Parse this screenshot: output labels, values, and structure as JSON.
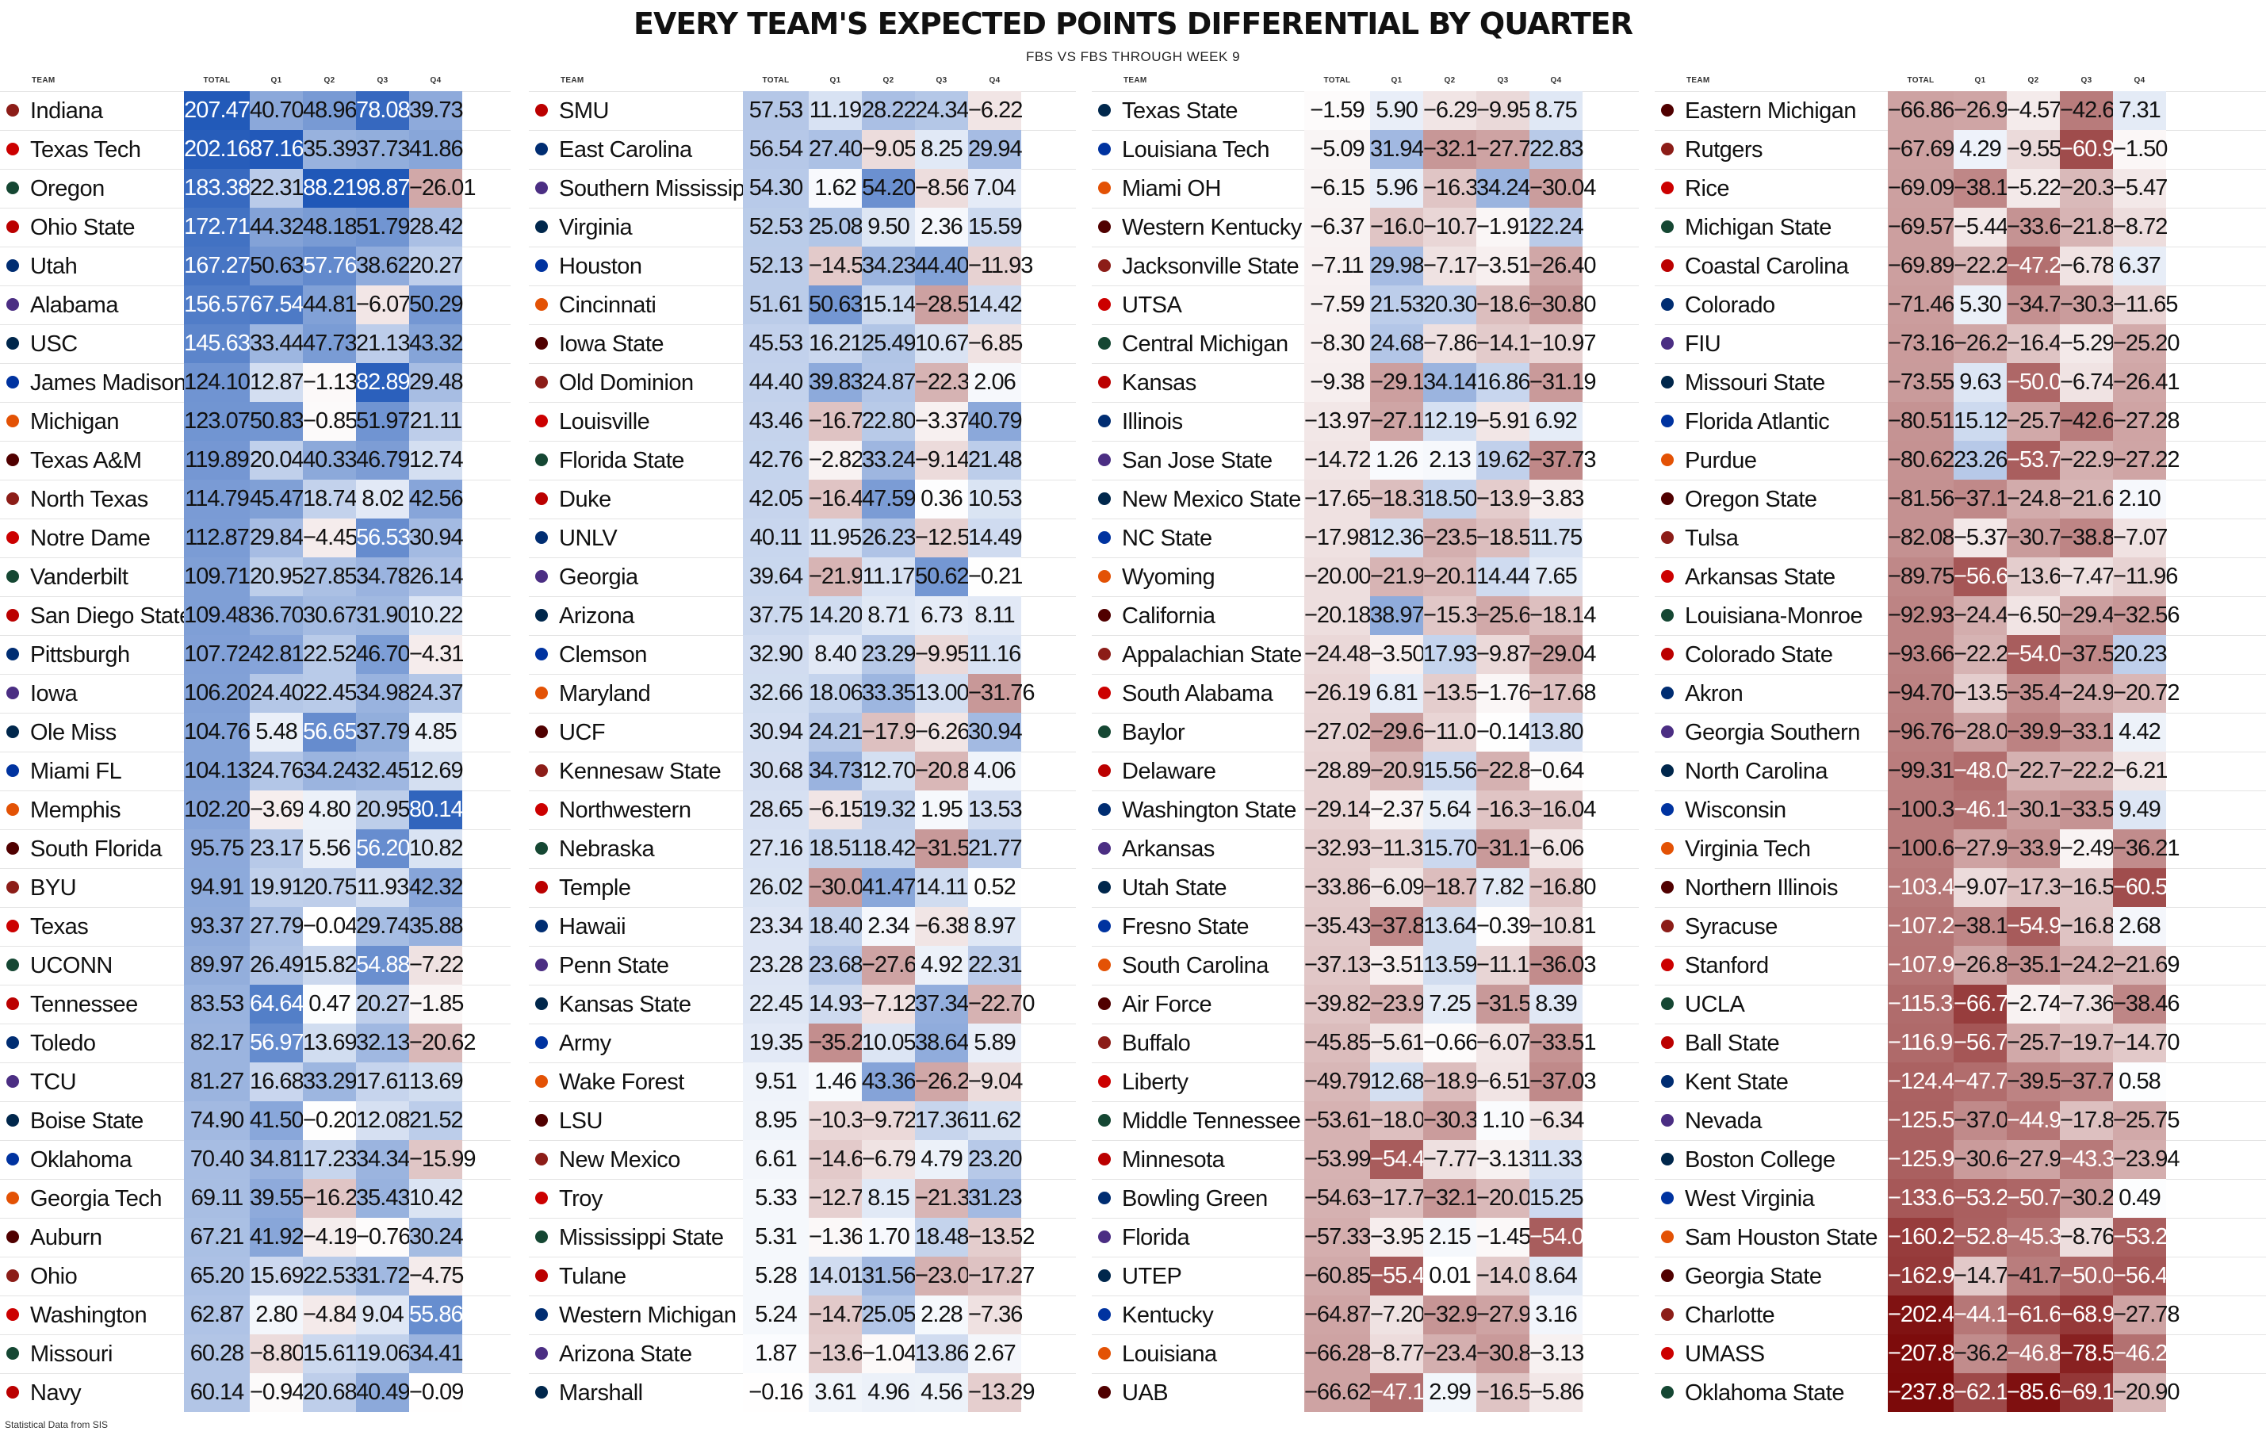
{
  "title": "EVERY TEAM'S EXPECTED POINTS DIFFERENTIAL BY QUARTER",
  "subtitle": "FBS VS FBS THROUGH WEEK 9",
  "footer": "Statistical Data from SIS",
  "column_headers": {
    "team": "TEAM",
    "total": "TOTAL",
    "q1": "Q1",
    "q2": "Q2",
    "q3": "Q3",
    "q4": "Q4"
  },
  "colors": {
    "positive": "#2058b8",
    "negative": "#7c0a0a",
    "neutral": "#ffffff"
  },
  "chart_data": {
    "type": "table",
    "title": "EVERY TEAM'S EXPECTED POINTS DIFFERENTIAL BY QUARTER",
    "subtitle": "FBS VS FBS THROUGH WEEK 9",
    "columns": [
      "TEAM",
      "TOTAL",
      "Q1",
      "Q2",
      "Q3",
      "Q4"
    ],
    "panels": [
      [
        [
          "Indiana",
          207.47,
          40.7,
          48.96,
          78.08,
          39.73
        ],
        [
          "Texas Tech",
          202.16,
          87.16,
          35.39,
          37.73,
          41.86
        ],
        [
          "Oregon",
          183.38,
          22.31,
          88.21,
          98.87,
          -26.01
        ],
        [
          "Ohio State",
          172.71,
          44.32,
          48.18,
          51.79,
          28.42
        ],
        [
          "Utah",
          167.27,
          50.63,
          57.76,
          38.62,
          20.27
        ],
        [
          "Alabama",
          156.57,
          67.54,
          44.81,
          -6.07,
          50.29
        ],
        [
          "USC",
          145.63,
          33.44,
          47.73,
          21.13,
          43.32
        ],
        [
          "James Madison",
          124.1,
          12.87,
          -1.13,
          82.89,
          29.48
        ],
        [
          "Michigan",
          123.07,
          50.83,
          -0.85,
          51.97,
          21.11
        ],
        [
          "Texas A&M",
          119.89,
          20.04,
          40.33,
          46.79,
          12.74
        ],
        [
          "North Texas",
          114.79,
          45.47,
          18.74,
          8.02,
          42.56
        ],
        [
          "Notre Dame",
          112.87,
          29.84,
          -4.45,
          56.53,
          30.94
        ],
        [
          "Vanderbilt",
          109.71,
          20.95,
          27.85,
          34.78,
          26.14
        ],
        [
          "San Diego State",
          109.48,
          36.7,
          30.67,
          31.9,
          10.22
        ],
        [
          "Pittsburgh",
          107.72,
          42.81,
          22.52,
          46.7,
          -4.31
        ],
        [
          "Iowa",
          106.2,
          24.4,
          22.45,
          34.98,
          24.37
        ],
        [
          "Ole Miss",
          104.76,
          5.48,
          56.65,
          37.79,
          4.85
        ],
        [
          "Miami FL",
          104.13,
          24.76,
          34.24,
          32.45,
          12.69
        ],
        [
          "Memphis",
          102.2,
          -3.69,
          4.8,
          20.95,
          80.14
        ],
        [
          "South Florida",
          95.75,
          23.17,
          5.56,
          56.2,
          10.82
        ],
        [
          "BYU",
          94.91,
          19.91,
          20.75,
          11.93,
          42.32
        ],
        [
          "Texas",
          93.37,
          27.79,
          -0.04,
          29.74,
          35.88
        ],
        [
          "UCONN",
          89.97,
          26.49,
          15.82,
          54.88,
          -7.22
        ],
        [
          "Tennessee",
          83.53,
          64.64,
          0.47,
          20.27,
          -1.85
        ],
        [
          "Toledo",
          82.17,
          56.97,
          13.69,
          32.13,
          -20.62
        ],
        [
          "TCU",
          81.27,
          16.68,
          33.29,
          17.61,
          13.69
        ],
        [
          "Boise State",
          74.9,
          41.5,
          -0.2,
          12.08,
          21.52
        ],
        [
          "Oklahoma",
          70.4,
          34.81,
          17.23,
          34.34,
          -15.99
        ],
        [
          "Georgia Tech",
          69.11,
          39.55,
          -16.28,
          35.43,
          10.42
        ],
        [
          "Auburn",
          67.21,
          41.92,
          -4.19,
          -0.76,
          30.24
        ],
        [
          "Ohio",
          65.2,
          15.69,
          22.53,
          31.72,
          -4.75
        ],
        [
          "Washington",
          62.87,
          2.8,
          -4.84,
          9.04,
          55.86
        ],
        [
          "Missouri",
          60.28,
          -8.8,
          15.61,
          19.06,
          34.41
        ],
        [
          "Navy",
          60.14,
          -0.94,
          20.68,
          40.49,
          -0.09
        ]
      ],
      [
        [
          "SMU",
          57.53,
          11.19,
          28.22,
          24.34,
          -6.22
        ],
        [
          "East Carolina",
          56.54,
          27.4,
          -9.05,
          8.25,
          29.94
        ],
        [
          "Southern Mississippi",
          54.3,
          1.62,
          54.2,
          -8.56,
          7.04
        ],
        [
          "Virginia",
          52.53,
          25.08,
          9.5,
          2.36,
          15.59
        ],
        [
          "Houston",
          52.13,
          -14.58,
          34.23,
          44.4,
          -11.93
        ],
        [
          "Cincinnati",
          51.61,
          50.63,
          15.14,
          -28.58,
          14.42
        ],
        [
          "Iowa State",
          45.53,
          16.21,
          25.49,
          10.67,
          -6.85
        ],
        [
          "Old Dominion",
          44.4,
          39.83,
          24.87,
          -22.36,
          2.06
        ],
        [
          "Louisville",
          43.46,
          -16.77,
          22.8,
          -3.37,
          40.79
        ],
        [
          "Florida State",
          42.76,
          -2.82,
          33.24,
          -9.14,
          21.48
        ],
        [
          "Duke",
          42.05,
          -16.44,
          47.59,
          0.36,
          10.53
        ],
        [
          "UNLV",
          40.11,
          11.95,
          26.23,
          -12.56,
          14.49
        ],
        [
          "Georgia",
          39.64,
          -21.93,
          11.17,
          50.62,
          -0.21
        ],
        [
          "Arizona",
          37.75,
          14.2,
          8.71,
          6.73,
          8.11
        ],
        [
          "Clemson",
          32.9,
          8.4,
          23.29,
          -9.95,
          11.16
        ],
        [
          "Maryland",
          32.66,
          18.06,
          33.35,
          13.0,
          -31.76
        ],
        [
          "UCF",
          30.94,
          24.21,
          -17.96,
          -6.26,
          30.94
        ],
        [
          "Kennesaw State",
          30.68,
          34.73,
          12.7,
          -20.8,
          4.06
        ],
        [
          "Northwestern",
          28.65,
          -6.15,
          19.32,
          1.95,
          13.53
        ],
        [
          "Nebraska",
          27.16,
          18.51,
          18.42,
          -31.53,
          21.77
        ],
        [
          "Temple",
          26.02,
          -30.08,
          41.47,
          14.11,
          0.52
        ],
        [
          "Hawaii",
          23.34,
          18.4,
          2.34,
          -6.38,
          8.97
        ],
        [
          "Penn State",
          23.28,
          23.68,
          -27.64,
          4.92,
          22.31
        ],
        [
          "Kansas State",
          22.45,
          14.93,
          -7.12,
          37.34,
          -22.7
        ],
        [
          "Army",
          19.35,
          -35.23,
          10.05,
          38.64,
          5.89
        ],
        [
          "Wake Forest",
          9.51,
          1.46,
          43.36,
          -26.28,
          -9.04
        ],
        [
          "LSU",
          8.95,
          -10.3,
          -9.72,
          17.36,
          11.62
        ],
        [
          "New Mexico",
          6.61,
          -14.6,
          -6.79,
          4.79,
          23.2
        ],
        [
          "Troy",
          5.33,
          -12.7,
          8.15,
          -21.35,
          31.23
        ],
        [
          "Mississippi State",
          5.31,
          -1.36,
          1.7,
          18.48,
          -13.52
        ],
        [
          "Tulane",
          5.28,
          14.01,
          31.56,
          -23.01,
          -17.27
        ],
        [
          "Western Michigan",
          5.24,
          -14.73,
          25.05,
          2.28,
          -7.36
        ],
        [
          "Arizona State",
          1.87,
          -13.62,
          -1.04,
          13.86,
          2.67
        ],
        [
          "Marshall",
          -0.16,
          3.61,
          4.96,
          4.56,
          -13.29
        ]
      ],
      [
        [
          "Texas State",
          -1.59,
          5.9,
          -6.29,
          -9.95,
          8.75
        ],
        [
          "Louisiana Tech",
          -5.09,
          31.94,
          -32.14,
          -27.72,
          22.83
        ],
        [
          "Miami OH",
          -6.15,
          5.96,
          -16.3,
          34.24,
          -30.04
        ],
        [
          "Western Kentucky",
          -6.37,
          -16.0,
          -10.7,
          -1.91,
          22.24
        ],
        [
          "Jacksonville State",
          -7.11,
          29.98,
          -7.17,
          -3.51,
          -26.4
        ],
        [
          "UTSA",
          -7.59,
          21.53,
          20.3,
          -18.62,
          -30.8
        ],
        [
          "Central Michigan",
          -8.3,
          24.68,
          -7.86,
          -14.15,
          -10.97
        ],
        [
          "Kansas",
          -9.38,
          -29.19,
          34.14,
          16.86,
          -31.19
        ],
        [
          "Illinois",
          -13.97,
          -27.17,
          12.19,
          -5.91,
          6.92
        ],
        [
          "San Jose State",
          -14.72,
          1.26,
          2.13,
          19.62,
          -37.73
        ],
        [
          "New Mexico State",
          -17.65,
          -18.38,
          18.5,
          -13.94,
          -3.83
        ],
        [
          "NC State",
          -17.98,
          12.36,
          -23.54,
          -18.55,
          11.75
        ],
        [
          "Wyoming",
          -20.0,
          -21.96,
          -20.13,
          14.44,
          7.65
        ],
        [
          "California",
          -20.18,
          38.97,
          -15.39,
          -25.63,
          -18.14
        ],
        [
          "Appalachian State",
          -24.48,
          -3.5,
          17.93,
          -9.87,
          -29.04
        ],
        [
          "South Alabama",
          -26.19,
          6.81,
          -13.57,
          -1.76,
          -17.68
        ],
        [
          "Baylor",
          -27.02,
          -29.69,
          -11.0,
          -0.14,
          13.8
        ],
        [
          "Delaware",
          -28.89,
          -20.95,
          15.56,
          -22.86,
          -0.64
        ],
        [
          "Washington State",
          -29.14,
          -2.37,
          5.64,
          -16.38,
          -16.04
        ],
        [
          "Arkansas",
          -32.93,
          -11.39,
          15.7,
          -31.19,
          -6.06
        ],
        [
          "Utah State",
          -33.86,
          -6.09,
          -18.78,
          7.82,
          -16.8
        ],
        [
          "Fresno State",
          -35.43,
          -37.88,
          13.64,
          -0.39,
          -10.81
        ],
        [
          "South Carolina",
          -37.13,
          -3.51,
          13.59,
          -11.19,
          -36.03
        ],
        [
          "Air Force",
          -39.82,
          -23.92,
          7.25,
          -31.55,
          8.39
        ],
        [
          "Buffalo",
          -45.85,
          -5.61,
          -0.66,
          -6.07,
          -33.51
        ],
        [
          "Liberty",
          -49.79,
          12.68,
          -18.93,
          -6.51,
          -37.03
        ],
        [
          "Middle Tennessee",
          -53.61,
          -18.06,
          -30.32,
          1.1,
          -6.34
        ],
        [
          "Minnesota",
          -53.99,
          -54.41,
          -7.77,
          -3.13,
          11.33
        ],
        [
          "Bowling Green",
          -54.63,
          -17.71,
          -32.14,
          -20.04,
          15.25
        ],
        [
          "Florida",
          -57.33,
          -3.95,
          2.15,
          -1.45,
          -54.08
        ],
        [
          "UTEP",
          -60.85,
          -55.43,
          0.01,
          -14.07,
          8.64
        ],
        [
          "Kentucky",
          -64.87,
          -7.2,
          -32.93,
          -27.91,
          3.16
        ],
        [
          "Louisiana",
          -66.28,
          -8.77,
          -23.48,
          -30.89,
          -3.13
        ],
        [
          "UAB",
          -66.62,
          -47.19,
          2.99,
          -16.56,
          -5.86
        ]
      ],
      [
        [
          "Eastern Michigan",
          -66.86,
          -26.92,
          -4.57,
          -42.68,
          7.31
        ],
        [
          "Rutgers",
          -67.69,
          4.29,
          -9.55,
          -60.93,
          -1.5
        ],
        [
          "Rice",
          -69.09,
          -38.1,
          -5.22,
          -20.31,
          -5.47
        ],
        [
          "Michigan State",
          -69.57,
          -5.44,
          -33.6,
          -21.81,
          -8.72
        ],
        [
          "Coastal Carolina",
          -69.89,
          -22.24,
          -47.24,
          -6.78,
          6.37
        ],
        [
          "Colorado",
          -71.46,
          5.3,
          -34.73,
          -30.37,
          -11.65
        ],
        [
          "FIU",
          -73.16,
          -26.21,
          -16.47,
          -5.29,
          -25.2
        ],
        [
          "Missouri State",
          -73.55,
          9.63,
          -50.03,
          -6.74,
          -26.41
        ],
        [
          "Florida Atlantic",
          -80.51,
          15.12,
          -25.7,
          -42.66,
          -27.28
        ],
        [
          "Purdue",
          -80.62,
          23.26,
          -53.73,
          -22.93,
          -27.22
        ],
        [
          "Oregon State",
          -81.56,
          -37.15,
          -24.89,
          -21.61,
          2.1
        ],
        [
          "Tulsa",
          -82.08,
          -5.37,
          -30.79,
          -38.86,
          -7.07
        ],
        [
          "Arkansas State",
          -89.75,
          -56.68,
          -13.64,
          -7.47,
          -11.96
        ],
        [
          "Louisiana-Monroe",
          -92.93,
          -24.44,
          -6.5,
          -29.43,
          -32.56
        ],
        [
          "Colorado State",
          -93.66,
          -22.29,
          -54.08,
          -37.52,
          20.23
        ],
        [
          "Akron",
          -94.7,
          -13.59,
          -35.44,
          -24.94,
          -20.72
        ],
        [
          "Georgia Southern",
          -96.76,
          -28.08,
          -39.96,
          -33.14,
          4.42
        ],
        [
          "North Carolina",
          -99.31,
          -48.04,
          -22.78,
          -22.28,
          -6.21
        ],
        [
          "Wisconsin",
          -100.39,
          -46.12,
          -30.18,
          -33.59,
          9.49
        ],
        [
          "Virginia Tech",
          -100.64,
          -27.99,
          -33.95,
          -2.49,
          -36.21
        ],
        [
          "Northern Illinois",
          -103.43,
          -9.07,
          -17.31,
          -16.53,
          -60.51
        ],
        [
          "Syracuse",
          -107.22,
          -38.12,
          -54.98,
          -16.8,
          2.68
        ],
        [
          "Stanford",
          -107.92,
          -26.81,
          -35.17,
          -24.26,
          -21.69
        ],
        [
          "UCLA",
          -115.33,
          -66.77,
          -2.74,
          -7.36,
          -38.46
        ],
        [
          "Ball State",
          -116.96,
          -56.72,
          -25.79,
          -19.74,
          -14.7
        ],
        [
          "Kent State",
          -124.47,
          -47.73,
          -39.54,
          -37.77,
          0.58
        ],
        [
          "Nevada",
          -125.5,
          -37.02,
          -44.9,
          -17.83,
          -25.75
        ],
        [
          "Boston College",
          -125.93,
          -30.68,
          -27.97,
          -43.34,
          -23.94
        ],
        [
          "West Virginia",
          -133.66,
          -53.2,
          -50.7,
          -30.25,
          0.49
        ],
        [
          "Sam Houston State",
          -160.27,
          -52.89,
          -45.39,
          -8.76,
          -53.23
        ],
        [
          "Georgia State",
          -162.99,
          -14.7,
          -41.78,
          -50.02,
          -56.48
        ],
        [
          "Charlotte",
          -202.44,
          -44.11,
          -61.61,
          -68.94,
          -27.78
        ],
        [
          "UMASS",
          -207.88,
          -36.27,
          -46.8,
          -78.57,
          -46.24
        ],
        [
          "Oklahoma State",
          -237.83,
          -62.1,
          -85.65,
          -69.18,
          -20.9
        ]
      ]
    ]
  }
}
